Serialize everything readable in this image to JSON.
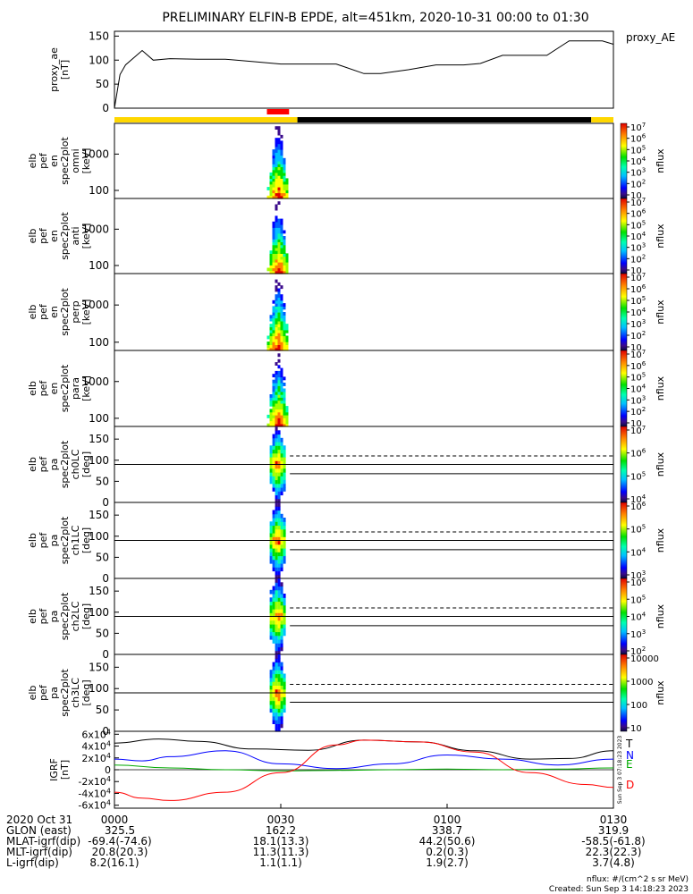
{
  "title": "PRELIMINARY ELFIN-B EPDE, alt=451km, 2020-10-31 00:00 to 01:30",
  "colors": {
    "yellow_bar": "#ffd700",
    "black_bar": "#000000",
    "red_bar": "#ff0000",
    "T": "#000000",
    "N": "#0000ff",
    "E": "#00aa00",
    "D": "#ff0000"
  },
  "footer": {
    "rows": [
      {
        "label": "2020 Oct 31",
        "values": [
          "0000",
          "0030",
          "0100",
          "0130"
        ]
      },
      {
        "label": "GLON (east)",
        "values": [
          "325.5",
          "162.2",
          "338.7",
          "319.9"
        ]
      },
      {
        "label": "MLAT-igrf(dip)",
        "values": [
          "-69.4(-74.6)",
          "18.1(13.3)",
          "44.2(50.6)",
          "-58.5(-61.8)"
        ]
      },
      {
        "label": "MLT-igrf(dip)",
        "values": [
          "20.8(20.3)",
          "11.3(11.3)",
          "0.2(0.3)",
          "22.3(22.3)"
        ]
      },
      {
        "label": "L-igrf(dip)",
        "values": [
          "8.2(16.1)",
          "1.1(1.1)",
          "1.9(2.7)",
          "3.7(4.8)"
        ]
      }
    ],
    "units_note": "nflux: #/(cm^2 s sr MeV)",
    "created": "Created: Sun Sep  3 14:18:23 2023",
    "side_stamp": "Sun Sep  3 07:18:23 2023"
  },
  "chart_data": [
    {
      "type": "line",
      "panel": "proxy_ae",
      "ylabel": [
        "proxy_ae",
        "[nT]"
      ],
      "series_label": "proxy_AE",
      "yticks": [
        "0",
        "50",
        "100",
        "150"
      ],
      "ylim": [
        0,
        160
      ],
      "xlim": [
        0,
        90
      ],
      "x": [
        0,
        1,
        2,
        5,
        7,
        10,
        15,
        20,
        25,
        30,
        35,
        40,
        45,
        48,
        53,
        58,
        63,
        66,
        70,
        74,
        78,
        82,
        86,
        88,
        90
      ],
      "values": [
        0,
        70,
        90,
        120,
        100,
        103,
        102,
        102,
        97,
        92,
        92,
        92,
        72,
        72,
        80,
        90,
        90,
        93,
        110,
        110,
        110,
        140,
        140,
        140,
        133
      ]
    },
    {
      "type": "bar",
      "panel": "status_bar",
      "segments": [
        {
          "start": 0,
          "end": 33,
          "color": "yellow"
        },
        {
          "start": 33,
          "end": 86,
          "color": "black"
        },
        {
          "start": 86,
          "end": 90,
          "color": "yellow"
        }
      ],
      "science_zone": {
        "start": 27.5,
        "end": 31.5,
        "color": "red"
      }
    },
    {
      "type": "heatmap",
      "panel": "spec_omni",
      "ylabel": [
        "elb",
        "pef",
        "en",
        "spec2plot",
        "omni",
        "[keV]"
      ],
      "yscale": "log",
      "yticks": [
        "100",
        "1000"
      ],
      "xrange": [
        27.5,
        31.5
      ],
      "colorbar": {
        "label": "nflux",
        "scale": "log",
        "ticks": [
          "10",
          "10^2",
          "10^3",
          "10^4",
          "10^5",
          "10^6",
          "10^7"
        ]
      }
    },
    {
      "type": "heatmap",
      "panel": "spec_anti",
      "ylabel": [
        "elb",
        "pef",
        "en",
        "spec2plot",
        "anti",
        "[keV]"
      ],
      "yscale": "log",
      "yticks": [
        "100",
        "1000"
      ],
      "xrange": [
        27.5,
        31.5
      ],
      "colorbar": {
        "label": "nflux",
        "scale": "log",
        "ticks": [
          "10",
          "10^2",
          "10^3",
          "10^4",
          "10^5",
          "10^6",
          "10^7"
        ]
      }
    },
    {
      "type": "heatmap",
      "panel": "spec_perp",
      "ylabel": [
        "elb",
        "pef",
        "en",
        "spec2plot",
        "perp",
        "[keV]"
      ],
      "yscale": "log",
      "yticks": [
        "100",
        "1000"
      ],
      "xrange": [
        27.5,
        31.5
      ],
      "colorbar": {
        "label": "nflux",
        "scale": "log",
        "ticks": [
          "10",
          "10^2",
          "10^3",
          "10^4",
          "10^5",
          "10^6",
          "10^7"
        ]
      }
    },
    {
      "type": "heatmap",
      "panel": "spec_para",
      "ylabel": [
        "elb",
        "pef",
        "en",
        "spec2plot",
        "para",
        "[keV]"
      ],
      "yscale": "log",
      "yticks": [
        "100",
        "1000"
      ],
      "xrange": [
        27.5,
        31.5
      ],
      "colorbar": {
        "label": "nflux",
        "scale": "log",
        "ticks": [
          "10",
          "10^2",
          "10^3",
          "10^4",
          "10^5",
          "10^6",
          "10^7"
        ]
      }
    },
    {
      "type": "heatmap",
      "panel": "pa_ch0",
      "ylabel": [
        "elb",
        "pef",
        "pa",
        "spec2plot",
        "ch0LC",
        "[deg]"
      ],
      "yticks": [
        "0",
        "50",
        "100",
        "150"
      ],
      "ylim": [
        0,
        180
      ],
      "ref_line": 90,
      "losscone_dashed": 110,
      "losscone_solid": 68,
      "xrange": [
        28,
        31
      ],
      "colorbar": {
        "label": "nflux",
        "scale": "log",
        "ticks": [
          "10^4",
          "10^5",
          "10^6",
          "10^7"
        ]
      }
    },
    {
      "type": "heatmap",
      "panel": "pa_ch1",
      "ylabel": [
        "elb",
        "pef",
        "pa",
        "spec2plot",
        "ch1LC",
        "[deg]"
      ],
      "yticks": [
        "0",
        "50",
        "100",
        "150"
      ],
      "ylim": [
        0,
        180
      ],
      "ref_line": 90,
      "losscone_dashed": 110,
      "losscone_solid": 68,
      "xrange": [
        28,
        31
      ],
      "colorbar": {
        "label": "nflux",
        "scale": "log",
        "ticks": [
          "10^3",
          "10^4",
          "10^5",
          "10^6"
        ]
      }
    },
    {
      "type": "heatmap",
      "panel": "pa_ch2",
      "ylabel": [
        "elb",
        "pef",
        "pa",
        "spec2plot",
        "ch2LC",
        "[deg]"
      ],
      "yticks": [
        "0",
        "50",
        "100",
        "150"
      ],
      "ylim": [
        0,
        180
      ],
      "ref_line": 90,
      "losscone_dashed": 110,
      "losscone_solid": 68,
      "xrange": [
        28,
        31
      ],
      "colorbar": {
        "label": "nflux",
        "scale": "log",
        "ticks": [
          "10^2",
          "10^3",
          "10^4",
          "10^5",
          "10^6"
        ]
      }
    },
    {
      "type": "heatmap",
      "panel": "pa_ch3",
      "ylabel": [
        "elb",
        "pef",
        "pa",
        "spec2plot",
        "ch3LC",
        "[deg]"
      ],
      "yticks": [
        "0",
        "50",
        "100",
        "150"
      ],
      "ylim": [
        0,
        180
      ],
      "ref_line": 90,
      "losscone_dashed": 110,
      "losscone_solid": 68,
      "xrange": [
        28,
        31
      ],
      "colorbar": {
        "label": "nflux",
        "scale": "log",
        "ticks": [
          "10",
          "100",
          "1000",
          "10000"
        ]
      }
    },
    {
      "type": "line",
      "panel": "igrf",
      "ylabel": [
        "IGRF",
        "[nT]"
      ],
      "yticks": [
        "6x10^4",
        "4x10^4",
        "2x10^4",
        "0",
        "-2x10^4",
        "-4x10^4",
        "-6x10^4"
      ],
      "ylim": [
        -65000,
        65000
      ],
      "xlim": [
        0,
        90
      ],
      "series": [
        {
          "name": "T",
          "color": "T",
          "x": [
            0,
            8,
            15,
            25,
            35,
            45,
            55,
            65,
            75,
            82,
            90
          ],
          "values": [
            45000,
            52000,
            48000,
            35000,
            33000,
            50000,
            47000,
            32000,
            18000,
            19000,
            32000
          ]
        },
        {
          "name": "N",
          "color": "N",
          "x": [
            0,
            5,
            10,
            20,
            30,
            40,
            50,
            60,
            70,
            80,
            90
          ],
          "values": [
            18000,
            15000,
            22000,
            32000,
            10000,
            2000,
            10000,
            25000,
            18000,
            8000,
            18000
          ]
        },
        {
          "name": "E",
          "color": "E",
          "x": [
            0,
            10,
            20,
            30,
            40,
            50,
            60,
            70,
            80,
            90
          ],
          "values": [
            8000,
            3000,
            0,
            -2000,
            -1000,
            0,
            1000,
            0,
            1000,
            3000
          ]
        },
        {
          "name": "D",
          "color": "D",
          "x": [
            0,
            5,
            10,
            20,
            30,
            40,
            45,
            55,
            65,
            75,
            85,
            90
          ],
          "values": [
            -38000,
            -48000,
            -52000,
            -38000,
            -5000,
            42000,
            50000,
            47000,
            30000,
            -5000,
            -25000,
            -30000
          ]
        }
      ]
    }
  ]
}
